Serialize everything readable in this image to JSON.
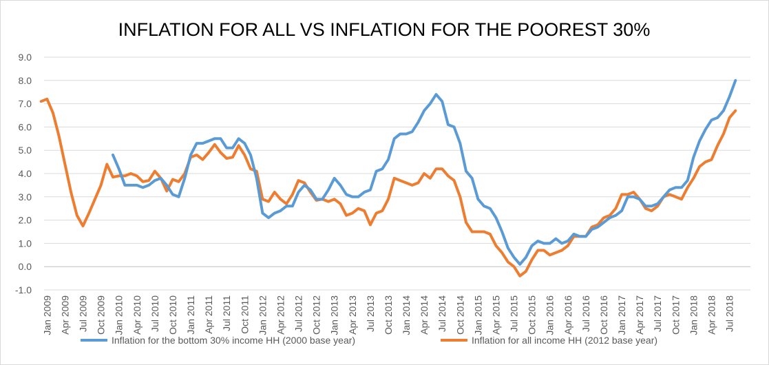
{
  "chart_data": {
    "type": "line",
    "title": "INFLATION FOR ALL VS INFLATION FOR THE POOREST 30%",
    "xlabel": "",
    "ylabel": "",
    "ylim": [
      -1.0,
      9.0
    ],
    "yticks": [
      "-1.0",
      "0.0",
      "1.0",
      "2.0",
      "3.0",
      "4.0",
      "5.0",
      "6.0",
      "7.0",
      "8.0",
      "9.0"
    ],
    "grid": true,
    "legend_position": "bottom",
    "x_tick_labels": [
      "Jan 2009",
      "Apr 2009",
      "Jul 2009",
      "Oct 2009",
      "Jan 2010",
      "Apr 2010",
      "Jul 2010",
      "Oct 2010",
      "Jan 2011",
      "Apr 2011",
      "Jul 2011",
      "Oct 2011",
      "Jan 2012",
      "Apr 2012",
      "Jul 2012",
      "Oct 2012",
      "Jan 2013",
      "Apr 2013",
      "Jul 2013",
      "Oct 2013",
      "Jan 2014",
      "Apr 2014",
      "Jul 2014",
      "Oct 2014",
      "Jan 2015",
      "Apr 2015",
      "Jul 2015",
      "Oct 2015",
      "Jan 2016",
      "Apr 2016",
      "Jul 2016",
      "Oct 2016",
      "Jan 2017",
      "Apr 2017",
      "Jul 2017",
      "Oct 2017",
      "Jan 2018",
      "Apr 2018",
      "Jul 2018"
    ],
    "x_start": "Jan 2009",
    "x_end": "Oct 2018",
    "series": [
      {
        "name": "Inflation for the bottom 30% income HH (2000 base year)",
        "color": "#5b9bd5",
        "start": "Dec 2009",
        "values": [
          4.8,
          4.2,
          3.5,
          3.5,
          3.5,
          3.4,
          3.5,
          3.7,
          3.8,
          3.5,
          3.1,
          3.0,
          3.8,
          4.8,
          5.3,
          5.3,
          5.4,
          5.5,
          5.5,
          5.1,
          5.1,
          5.5,
          5.3,
          4.8,
          3.8,
          2.3,
          2.1,
          2.3,
          2.4,
          2.6,
          2.6,
          3.2,
          3.5,
          3.3,
          2.9,
          2.9,
          3.3,
          3.8,
          3.5,
          3.1,
          3.0,
          3.0,
          3.2,
          3.3,
          4.1,
          4.2,
          4.6,
          5.5,
          5.7,
          5.7,
          5.8,
          6.2,
          6.7,
          7.0,
          7.4,
          7.1,
          6.1,
          6.0,
          5.3,
          4.1,
          3.8,
          2.9,
          2.6,
          2.5,
          2.1,
          1.5,
          0.8,
          0.4,
          0.1,
          0.4,
          0.9,
          1.1,
          1.0,
          1.0,
          1.2,
          1.0,
          1.1,
          1.4,
          1.3,
          1.3,
          1.6,
          1.7,
          1.9,
          2.1,
          2.2,
          2.4,
          3.0,
          3.0,
          2.9,
          2.6,
          2.6,
          2.7,
          3.0,
          3.3,
          3.4,
          3.4,
          3.7,
          4.7,
          5.4,
          5.9,
          6.3,
          6.4,
          6.7,
          7.3,
          8.0
        ]
      },
      {
        "name": "Inflation for all income HH (2012 base year)",
        "color": "#ed7d31",
        "start": "Dec 2008",
        "values": [
          7.1,
          7.2,
          6.6,
          5.6,
          4.4,
          3.2,
          2.2,
          1.75,
          2.3,
          2.9,
          3.5,
          4.4,
          3.85,
          3.9,
          3.9,
          4.0,
          3.9,
          3.65,
          3.7,
          4.1,
          3.8,
          3.25,
          3.75,
          3.65,
          4.0,
          4.7,
          4.8,
          4.6,
          4.9,
          5.25,
          4.9,
          4.65,
          4.7,
          5.2,
          4.8,
          4.2,
          4.1,
          2.9,
          2.8,
          3.2,
          2.9,
          2.7,
          3.1,
          3.7,
          3.6,
          3.2,
          2.85,
          2.9,
          2.8,
          2.9,
          2.7,
          2.2,
          2.3,
          2.5,
          2.4,
          1.8,
          2.3,
          2.4,
          2.9,
          3.8,
          3.7,
          3.6,
          3.5,
          3.6,
          4.0,
          3.8,
          4.2,
          4.2,
          3.9,
          3.7,
          3.0,
          1.9,
          1.5,
          1.5,
          1.5,
          1.4,
          0.9,
          0.6,
          0.2,
          0.0,
          -0.4,
          -0.2,
          0.3,
          0.7,
          0.7,
          0.5,
          0.6,
          0.7,
          0.9,
          1.3,
          1.3,
          1.3,
          1.7,
          1.8,
          2.1,
          2.2,
          2.5,
          3.1,
          3.1,
          3.2,
          2.9,
          2.5,
          2.4,
          2.6,
          3.0,
          3.1,
          3.0,
          2.9,
          3.4,
          3.8,
          4.3,
          4.5,
          4.6,
          5.2,
          5.7,
          6.4,
          6.7
        ]
      }
    ]
  }
}
